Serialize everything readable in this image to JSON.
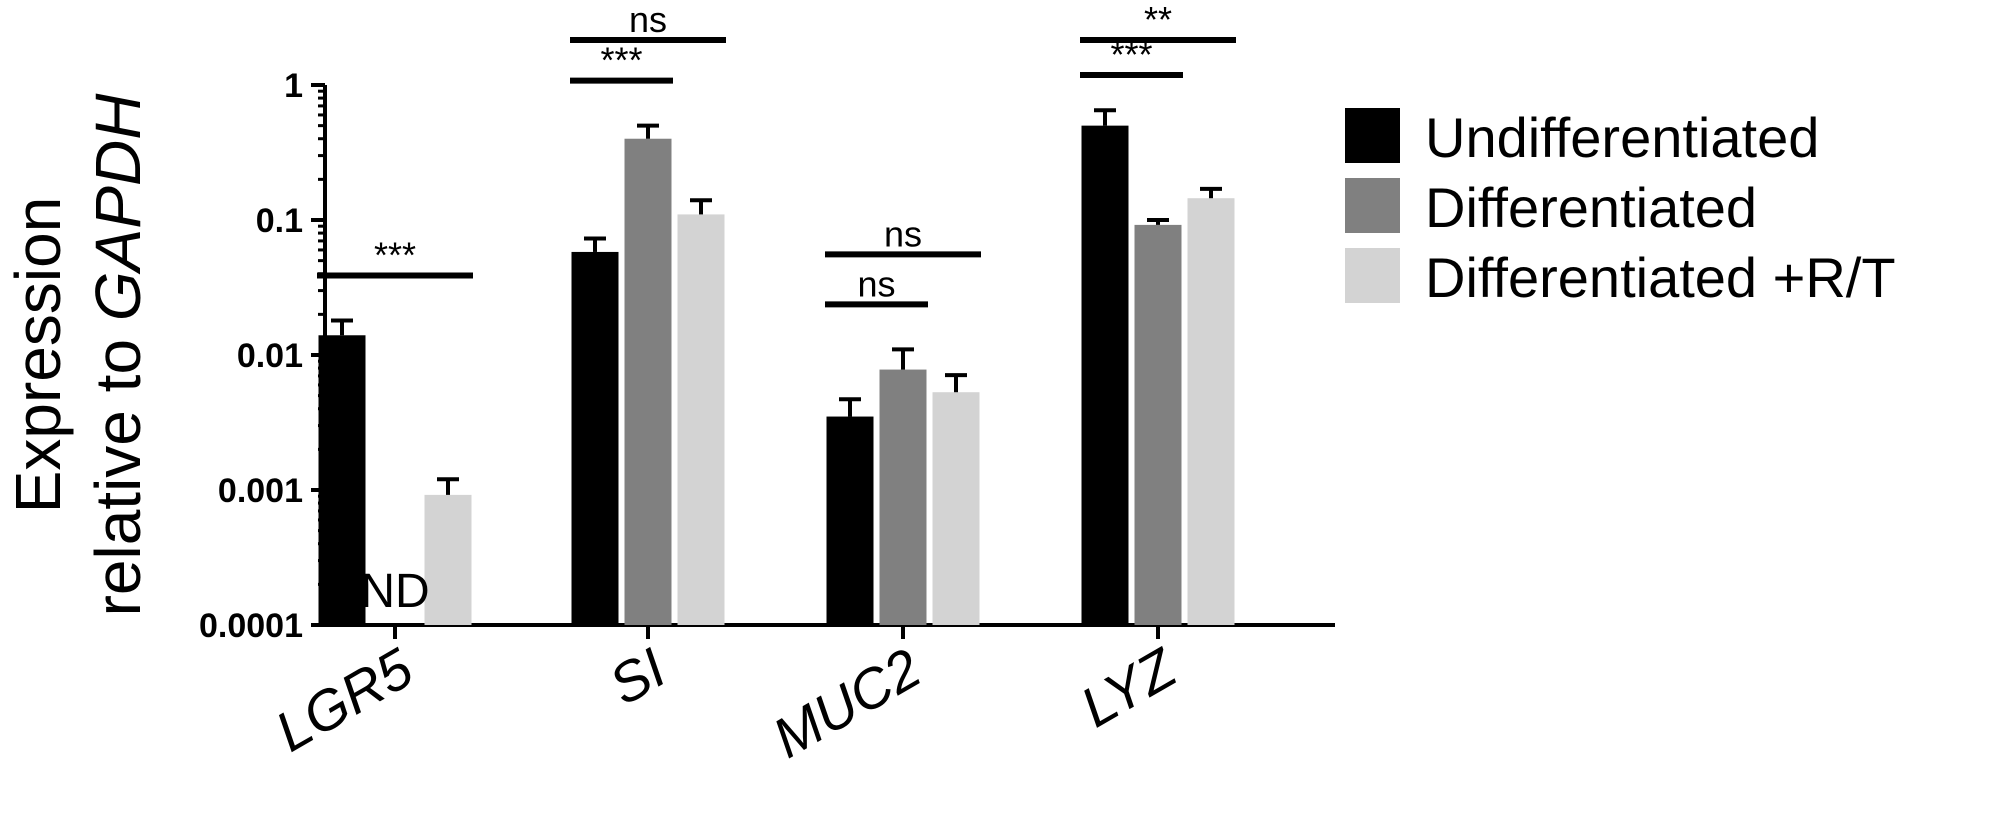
{
  "chart_data": {
    "type": "bar",
    "yscale": "log",
    "ylim": [
      0.0001,
      1
    ],
    "ylabel_parts": [
      {
        "text": "Expression",
        "italic": false,
        "line": 1
      },
      {
        "text": "relative to ",
        "italic": false,
        "line": 2
      },
      {
        "text": "GAPDH",
        "italic": true,
        "line": 2
      }
    ],
    "yticks": [
      {
        "value": 1,
        "label": "1"
      },
      {
        "value": 0.1,
        "label": "0.1"
      },
      {
        "value": 0.01,
        "label": "0.01"
      },
      {
        "value": 0.001,
        "label": "0.001"
      },
      {
        "value": 0.0001,
        "label": "0.0001"
      }
    ],
    "categories": [
      "LGR5",
      "SI",
      "MUC2",
      "LYZ"
    ],
    "legend_position": "right",
    "series": [
      {
        "name": "Undifferentiated",
        "color": "#000000",
        "values": [
          0.014,
          0.058,
          0.0035,
          0.5
        ],
        "errors": [
          0.018,
          0.073,
          0.0047,
          0.65
        ]
      },
      {
        "name": "Differentiated",
        "color": "#808080",
        "values": [
          null,
          0.4,
          0.0078,
          0.092
        ],
        "errors": [
          null,
          0.5,
          0.011,
          0.1
        ]
      },
      {
        "name": "Differentiated +R/T",
        "color": "#d3d3d3",
        "values": [
          0.00092,
          0.11,
          0.0053,
          0.145
        ],
        "errors": [
          0.0012,
          0.14,
          0.0071,
          0.17
        ]
      }
    ],
    "annotations": [
      {
        "category": 0,
        "series": 1,
        "text": "ND"
      }
    ],
    "significance": [
      {
        "category": 0,
        "from": 0,
        "to": 2,
        "label": "***",
        "level": 0
      },
      {
        "category": 1,
        "from": 0,
        "to": 1,
        "label": "***",
        "level": 0
      },
      {
        "category": 1,
        "from": 0,
        "to": 2,
        "label": "ns",
        "level": 1
      },
      {
        "category": 2,
        "from": 0,
        "to": 1,
        "label": "ns",
        "level": 0
      },
      {
        "category": 2,
        "from": 0,
        "to": 2,
        "label": "ns",
        "level": 1
      },
      {
        "category": 3,
        "from": 0,
        "to": 1,
        "label": "***",
        "level": 0
      },
      {
        "category": 3,
        "from": 0,
        "to": 2,
        "label": "**",
        "level": 1
      }
    ]
  }
}
